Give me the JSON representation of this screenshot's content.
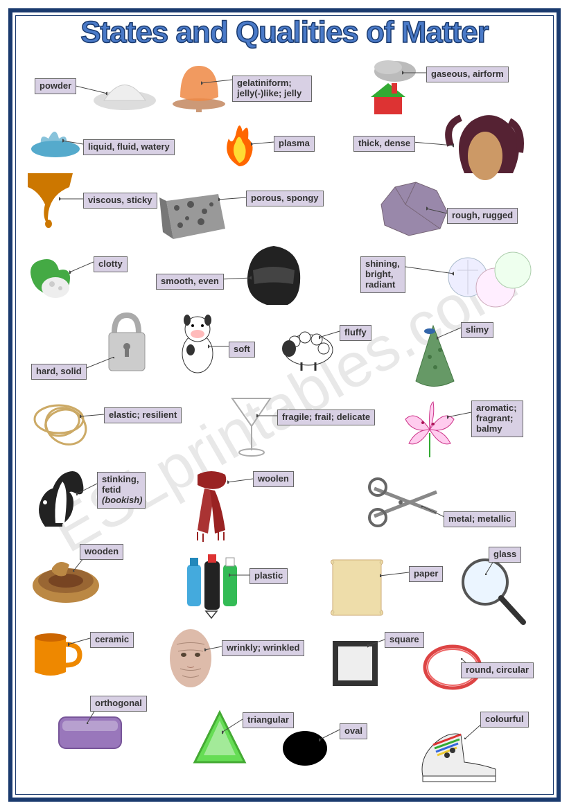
{
  "title": "States and Qualities of Matter",
  "watermark": "ESLprintables.com",
  "label_bg": "#d8d0e4",
  "frame_color": "#1a3a6e",
  "labels": {
    "powder": "powder",
    "gelatiniform": "gelatiniform;\njelly(-)like; jelly",
    "gaseous": "gaseous, airform",
    "liquid": "liquid, fluid, watery",
    "plasma": "plasma",
    "thick": "thick, dense",
    "viscous": "viscous, sticky",
    "porous": "porous, spongy",
    "rough": "rough, rugged",
    "clotty": "clotty",
    "smooth": "smooth, even",
    "shining": "shining,\nbright,\nradiant",
    "hard": "hard, solid",
    "soft": "soft",
    "fluffy": "fluffy",
    "slimy": "slimy",
    "elastic": "elastic; resilient",
    "fragile": "fragile; frail; delicate",
    "aromatic": "aromatic;\nfragrant;\nbalmy",
    "stinking": "stinking,\nfetid\n(bookish)",
    "woolen": "woolen",
    "metal": "metal; metallic",
    "wooden": "wooden",
    "plastic": "plastic",
    "paper": "paper",
    "glass": "glass",
    "ceramic": "ceramic",
    "wrinkly": "wrinkly; wrinkled",
    "square": "square",
    "round": "round, circular",
    "orthogonal": "orthogonal",
    "triangular": "triangular",
    "oval": "oval",
    "colourful": "colourful"
  }
}
